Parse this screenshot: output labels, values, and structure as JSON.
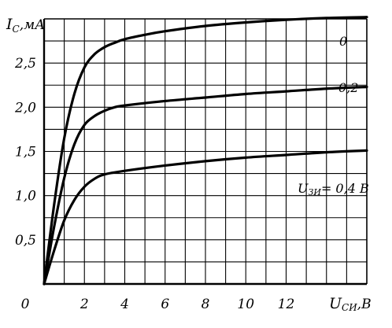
{
  "chart_data": {
    "type": "line",
    "title": "",
    "ylabel": "I_C, mA",
    "ylabel_main": "I",
    "ylabel_sub": "С",
    "ylabel_unit": ",мА",
    "xlabel": "U_СИ, В",
    "xlabel_main": "U",
    "xlabel_sub": "СИ",
    "xlabel_unit": ",В",
    "xlim": [
      0,
      16
    ],
    "ylim": [
      0,
      3.0
    ],
    "grid": true,
    "x_ticks": [
      {
        "value": 0,
        "label": "0"
      },
      {
        "value": 2,
        "label": "2"
      },
      {
        "value": 4,
        "label": "4"
      },
      {
        "value": 6,
        "label": "6"
      },
      {
        "value": 8,
        "label": "8"
      },
      {
        "value": 10,
        "label": "10"
      },
      {
        "value": 12,
        "label": "12"
      }
    ],
    "y_ticks": [
      {
        "value": 0.5,
        "label": "0,5"
      },
      {
        "value": 1.0,
        "label": "1,0"
      },
      {
        "value": 1.5,
        "label": "1,5"
      },
      {
        "value": 2.0,
        "label": "2,0"
      },
      {
        "value": 2.5,
        "label": "2,5"
      }
    ],
    "series": [
      {
        "name": "0",
        "label": "0",
        "x": [
          0,
          0.5,
          1,
          1.5,
          2,
          2.5,
          3,
          3.5,
          4,
          5,
          6,
          8,
          10,
          12,
          14,
          16
        ],
        "y": [
          0,
          0.9,
          1.65,
          2.15,
          2.45,
          2.6,
          2.68,
          2.73,
          2.77,
          2.82,
          2.86,
          2.92,
          2.96,
          2.99,
          3.01,
          3.02
        ]
      },
      {
        "name": "0,2",
        "label": "0,2",
        "x": [
          0,
          0.5,
          1,
          1.5,
          2,
          2.5,
          3,
          3.5,
          4,
          6,
          8,
          10,
          12,
          14,
          16
        ],
        "y": [
          0,
          0.65,
          1.2,
          1.58,
          1.8,
          1.9,
          1.96,
          2.0,
          2.02,
          2.07,
          2.11,
          2.15,
          2.18,
          2.21,
          2.23
        ]
      },
      {
        "name": "U_ЗИ = 0,4 В",
        "label_main": "U",
        "label_sub": "ЗИ",
        "label_rest": "= 0,4 В",
        "x": [
          0,
          0.5,
          1,
          1.5,
          2,
          2.5,
          3,
          4,
          6,
          8,
          10,
          12,
          14,
          16
        ],
        "y": [
          0,
          0.38,
          0.72,
          0.95,
          1.1,
          1.19,
          1.24,
          1.28,
          1.34,
          1.39,
          1.43,
          1.46,
          1.49,
          1.51
        ]
      }
    ]
  }
}
